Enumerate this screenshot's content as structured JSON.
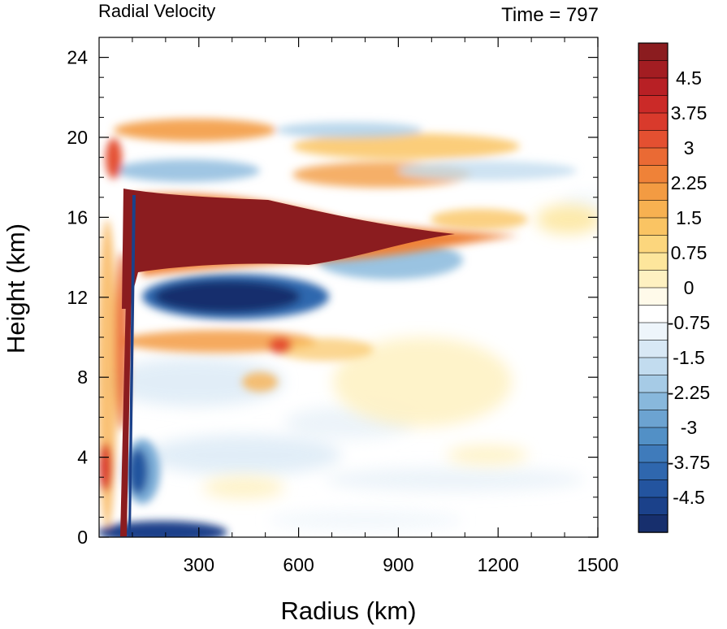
{
  "chart_data": {
    "type": "heatmap",
    "title_left": "Radial Velocity",
    "title_right": "Time = 797",
    "xlabel": "Radius (km)",
    "ylabel": "Height (km)",
    "xlim": [
      0,
      1500
    ],
    "ylim": [
      0,
      25
    ],
    "xticks": [
      300,
      600,
      900,
      1200,
      1500
    ],
    "xtick_labels": [
      "300",
      "600",
      "900",
      "1200",
      "1500"
    ],
    "yticks": [
      0,
      4,
      8,
      12,
      16,
      20,
      24
    ],
    "ytick_labels": [
      "0",
      "4",
      "8",
      "12",
      "16",
      "20",
      "24"
    ],
    "colorbar": {
      "min": -5.25,
      "max": 5.25,
      "step": 0.375,
      "labels": [
        "4.5",
        "3.75",
        "3",
        "2.25",
        "1.5",
        "0.75",
        "0",
        "-0.75",
        "-1.5",
        "-2.25",
        "-3",
        "-3.75",
        "-4.5"
      ],
      "label_values": [
        4.5,
        3.75,
        3,
        2.25,
        1.5,
        0.75,
        0,
        -0.75,
        -1.5,
        -2.25,
        -3,
        -3.75,
        -4.5
      ],
      "colors_top_to_bottom": [
        "#8b1c1f",
        "#a31d22",
        "#b82025",
        "#cb2a28",
        "#d93a2c",
        "#e45031",
        "#ea6a34",
        "#ef8238",
        "#f39b42",
        "#f7b151",
        "#fac463",
        "#fcd67d",
        "#fde69c",
        "#fef1c1",
        "#fffaea",
        "#ffffff",
        "#eef5fb",
        "#d8e8f5",
        "#c2dcef",
        "#a6cbe6",
        "#88b8dc",
        "#6ca3d1",
        "#5290c6",
        "#3f7bbb",
        "#2f67ae",
        "#23549f",
        "#1b418a",
        "#172f6d"
      ]
    },
    "features": [
      {
        "desc": "upper-level outflow jet",
        "value": 5.25,
        "r_range": [
          90,
          1080
        ],
        "z_center": 15.2
      },
      {
        "desc": "inflow beneath outflow",
        "value": -5.25,
        "r_range": [
          180,
          620
        ],
        "z_center": 12.0
      },
      {
        "desc": "low-level boundary inflow",
        "value": -5.25,
        "r_range": [
          60,
          270
        ],
        "z_center": 0.4
      }
    ]
  }
}
